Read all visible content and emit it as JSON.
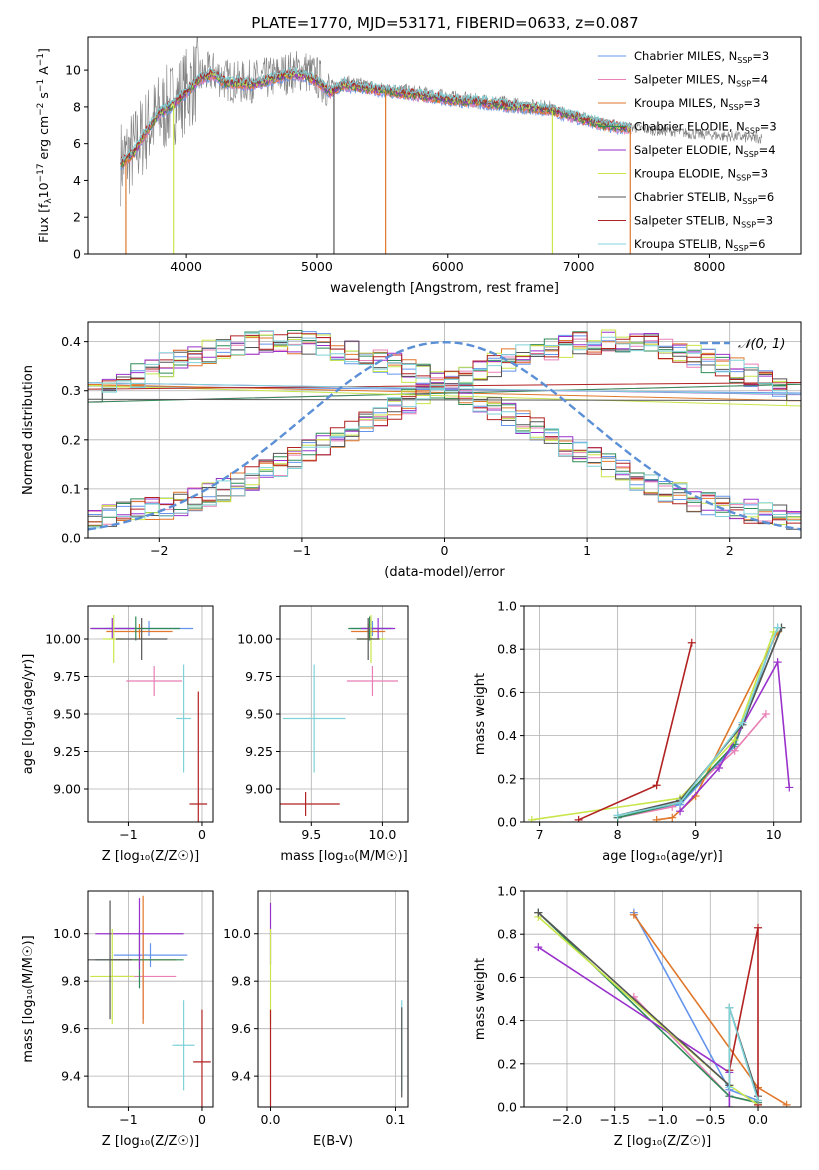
{
  "figure": {
    "title": "PLATE=1770, MJD=53171, FIBERID=0633, z=0.087"
  },
  "series_styles": [
    {
      "name": "Chabrier MILES",
      "nssp": "3",
      "color": "#6495ed"
    },
    {
      "name": "Salpeter MILES",
      "nssp": "4",
      "color": "#e87fb5"
    },
    {
      "name": "Kroupa MILES",
      "nssp": "3",
      "color": "#e0772a"
    },
    {
      "name": "Chabrier ELODIE",
      "nssp": "3",
      "color": "#2e8b57"
    },
    {
      "name": "Salpeter ELODIE",
      "nssp": "4",
      "color": "#9932cc"
    },
    {
      "name": "Kroupa ELODIE",
      "nssp": "3",
      "color": "#c8e64a"
    },
    {
      "name": "Chabrier STELIB",
      "nssp": "6",
      "color": "#555555"
    },
    {
      "name": "Salpeter STELIB",
      "nssp": "3",
      "color": "#b22222"
    },
    {
      "name": "Kroupa STELIB",
      "nssp": "6",
      "color": "#7fd3d8"
    }
  ],
  "chart_data": [
    {
      "id": "spectrum",
      "type": "line",
      "title": "PLATE=1770, MJD=53171, FIBERID=0633, z=0.087",
      "xlabel": "wavelength [Angstrom, rest frame]",
      "ylabel": "Flux [f",
      "xlim": [
        3250,
        8700
      ],
      "ylim": [
        0,
        11.8
      ],
      "xticks": [
        4000,
        5000,
        6000,
        7000,
        8000
      ],
      "yticks": [
        0,
        2,
        4,
        6,
        8,
        10
      ],
      "legend_position": "upper right",
      "data_color": "#808080",
      "data": {
        "x": [
          3500,
          3600,
          3700,
          3800,
          3900,
          4000,
          4100,
          4200,
          4300,
          4400,
          4500,
          4600,
          4700,
          4800,
          4900,
          5000,
          5100,
          5200,
          5300,
          5400,
          5500,
          5600,
          5700,
          5800,
          5900,
          6000,
          6100,
          6200,
          6300,
          6400,
          6500,
          6600,
          6700,
          6800,
          6900,
          7000,
          7100,
          7200,
          7300,
          7400,
          7500,
          7600,
          7700,
          7800,
          7900,
          8000,
          8100,
          8200,
          8300,
          8400
        ],
        "y": [
          5.0,
          5.6,
          6.8,
          7.6,
          8.2,
          8.9,
          9.6,
          9.9,
          9.5,
          9.3,
          9.4,
          9.5,
          9.7,
          9.9,
          10.0,
          9.6,
          9.0,
          9.3,
          9.2,
          9.1,
          8.9,
          8.9,
          8.8,
          8.7,
          8.6,
          8.5,
          8.4,
          8.3,
          8.3,
          8.2,
          8.1,
          8.0,
          8.0,
          7.9,
          7.7,
          7.5,
          7.3,
          7.1,
          7.0,
          6.9,
          6.8,
          6.7,
          6.7,
          6.6,
          6.5,
          6.5,
          6.4,
          6.4,
          6.3,
          6.3
        ]
      },
      "model": {
        "x": [
          3500,
          3600,
          3700,
          3800,
          3900,
          4000,
          4100,
          4200,
          4300,
          4400,
          4500,
          4600,
          4700,
          4800,
          4900,
          5000,
          5100,
          5200,
          5300,
          5400,
          5500,
          5600,
          5700,
          5800,
          5900,
          6000,
          6100,
          6200,
          6300,
          6400,
          6500,
          6600,
          6700,
          6800,
          6900,
          7000,
          7100,
          7200,
          7300,
          7400
        ],
        "y": [
          4.9,
          5.5,
          6.7,
          7.7,
          8.1,
          8.8,
          9.5,
          9.8,
          9.3,
          9.3,
          9.2,
          9.4,
          9.6,
          9.8,
          9.7,
          9.4,
          8.8,
          9.2,
          9.1,
          9.0,
          8.9,
          8.8,
          8.7,
          8.6,
          8.5,
          8.4,
          8.3,
          8.3,
          8.2,
          8.1,
          8.0,
          8.0,
          7.9,
          7.8,
          7.6,
          7.4,
          7.2,
          7.0,
          6.9,
          6.8
        ]
      },
      "dips": [
        {
          "x": 3540,
          "series": "Kroupa MILES"
        },
        {
          "x": 3905,
          "series": "Kroupa ELODIE"
        },
        {
          "x": 5130,
          "series": "Chabrier STELIB"
        },
        {
          "x": 5525,
          "series": "Kroupa MILES"
        },
        {
          "x": 6800,
          "series": "Kroupa ELODIE"
        },
        {
          "x": 7395,
          "series": "Kroupa MILES"
        }
      ]
    },
    {
      "id": "residuals",
      "type": "line",
      "xlabel": "(data-model)/error",
      "ylabel": "Normed distribution",
      "xlim": [
        -2.5,
        2.5
      ],
      "ylim": [
        0,
        0.44
      ],
      "xticks": [
        -2,
        -1,
        0,
        1,
        2
      ],
      "yticks": [
        0.0,
        0.1,
        0.2,
        0.3,
        0.4
      ],
      "legend": [
        {
          "label": "𝒩(0, 1)",
          "color": "#5b8fd6",
          "style": "dashed"
        }
      ],
      "legend_position": "upper right",
      "bin_width": 0.1,
      "bin_start": -2.5,
      "histogram_base": [
        0.04,
        0.045,
        0.05,
        0.055,
        0.058,
        0.062,
        0.07,
        0.078,
        0.088,
        0.098,
        0.11,
        0.122,
        0.135,
        0.148,
        0.162,
        0.176,
        0.19,
        0.205,
        0.22,
        0.235,
        0.25,
        0.264,
        0.278,
        0.292,
        0.305,
        0.318,
        0.33,
        0.342,
        0.353,
        0.362,
        0.371,
        0.379,
        0.386,
        0.392,
        0.396,
        0.399,
        0.4,
        0.399,
        0.396,
        0.392,
        0.386,
        0.379,
        0.371,
        0.362,
        0.353,
        0.342,
        0.33,
        0.318,
        0.305,
        0.292
      ]
    },
    {
      "id": "age-vs-Z",
      "type": "scatter",
      "xlabel": "Z [log₁₀(Z/Z☉)]",
      "ylabel": "age  [log₁₀(age/yr)]",
      "xlim": [
        -1.55,
        0.15
      ],
      "ylim": [
        8.78,
        10.22
      ],
      "xticks": [
        -1,
        0
      ],
      "yticks": [
        9.0,
        9.25,
        9.5,
        9.75,
        10.0
      ],
      "points": [
        {
          "s": 0,
          "x": -0.72,
          "y": 10.07,
          "xe": 0.6,
          "ye": 0.05
        },
        {
          "s": 1,
          "x": -0.65,
          "y": 9.72,
          "xe": 0.38,
          "ye": 0.1
        },
        {
          "s": 2,
          "x": -0.85,
          "y": 10.05,
          "xe": 0.45,
          "ye": 0.05
        },
        {
          "s": 3,
          "x": -0.9,
          "y": 10.07,
          "xe": 0.6,
          "ye": 0.08
        },
        {
          "s": 4,
          "x": -1.22,
          "y": 10.07,
          "xe": 0.3,
          "ye": 0.07
        },
        {
          "s": 5,
          "x": -1.2,
          "y": 10.0,
          "xe": 0.15,
          "ye": 0.16
        },
        {
          "s": 6,
          "x": -0.82,
          "y": 10.0,
          "xe": 0.35,
          "ye": 0.14
        },
        {
          "s": 7,
          "x": -0.05,
          "y": 8.9,
          "xe": 0.12,
          "ye": 0.75
        },
        {
          "s": 8,
          "x": -0.25,
          "y": 9.47,
          "xe": 0.1,
          "ye": 0.36
        }
      ]
    },
    {
      "id": "age-vs-mass",
      "type": "scatter",
      "xlabel": "mass [log₁₀(M/M☉)]",
      "ylabel": "",
      "xlim": [
        9.28,
        10.18
      ],
      "ylim": [
        8.78,
        10.22
      ],
      "xticks": [
        9.5,
        10.0
      ],
      "yticks": [
        9.0,
        9.25,
        9.5,
        9.75,
        10.0
      ],
      "points": [
        {
          "s": 0,
          "x": 9.93,
          "y": 10.07,
          "xe": 0.15,
          "ye": 0.05
        },
        {
          "s": 1,
          "x": 9.93,
          "y": 9.72,
          "xe": 0.18,
          "ye": 0.1
        },
        {
          "s": 2,
          "x": 9.9,
          "y": 10.05,
          "xe": 0.12,
          "ye": 0.05
        },
        {
          "s": 3,
          "x": 9.91,
          "y": 10.07,
          "xe": 0.15,
          "ye": 0.08
        },
        {
          "s": 4,
          "x": 9.97,
          "y": 10.07,
          "xe": 0.12,
          "ye": 0.07
        },
        {
          "s": 5,
          "x": 9.92,
          "y": 10.0,
          "xe": 0.1,
          "ye": 0.16
        },
        {
          "s": 6,
          "x": 9.9,
          "y": 10.0,
          "xe": 0.08,
          "ye": 0.14
        },
        {
          "s": 7,
          "x": 9.46,
          "y": 8.9,
          "xe": 0.24,
          "ye": 0.08
        },
        {
          "s": 8,
          "x": 9.52,
          "y": 9.47,
          "xe": 0.22,
          "ye": 0.36
        }
      ]
    },
    {
      "id": "mass-weight-vs-age",
      "type": "line",
      "xlabel": "age  [log₁₀(age/yr)]",
      "ylabel": "mass weight",
      "xlim": [
        6.8,
        10.35
      ],
      "ylim": [
        0,
        1.0
      ],
      "xticks": [
        7,
        8,
        9,
        10
      ],
      "yticks": [
        0.0,
        0.2,
        0.4,
        0.6,
        0.8,
        1.0
      ],
      "lines": [
        {
          "s": 0,
          "x": [
            8.0,
            8.8,
            9.5,
            10.05
          ],
          "y": [
            0.02,
            0.08,
            0.35,
            0.9
          ]
        },
        {
          "s": 1,
          "x": [
            8.0,
            8.7,
            9.5,
            9.9
          ],
          "y": [
            0.02,
            0.07,
            0.33,
            0.5
          ]
        },
        {
          "s": 2,
          "x": [
            8.5,
            8.7,
            9.0,
            10.05
          ],
          "y": [
            0.01,
            0.02,
            0.12,
            0.88
          ]
        },
        {
          "s": 3,
          "x": [
            8.0,
            8.8,
            9.5,
            10.1
          ],
          "y": [
            0.02,
            0.09,
            0.36,
            0.9
          ]
        },
        {
          "s": 4,
          "x": [
            8.8,
            9.3,
            10.05,
            10.2
          ],
          "y": [
            0.05,
            0.25,
            0.74,
            0.16
          ]
        },
        {
          "s": 5,
          "x": [
            6.9,
            8.8,
            9.5,
            10.0
          ],
          "y": [
            0.01,
            0.11,
            0.38,
            0.88
          ]
        },
        {
          "s": 6,
          "x": [
            8.0,
            8.8,
            9.6,
            10.1
          ],
          "y": [
            0.03,
            0.1,
            0.45,
            0.9
          ]
        },
        {
          "s": 7,
          "x": [
            7.5,
            8.5,
            8.95
          ],
          "y": [
            0.01,
            0.17,
            0.83
          ]
        },
        {
          "s": 8,
          "x": [
            8.0,
            8.8,
            9.6,
            10.05
          ],
          "y": [
            0.03,
            0.09,
            0.46,
            0.9
          ]
        }
      ]
    },
    {
      "id": "mass-vs-Z",
      "type": "scatter",
      "xlabel": "Z [log₁₀(Z/Z☉)]",
      "ylabel": "mass [log₁₀(M/M☉)]",
      "xlim": [
        -1.55,
        0.15
      ],
      "ylim": [
        9.27,
        10.18
      ],
      "xticks": [
        -1,
        0
      ],
      "yticks": [
        9.4,
        9.6,
        9.8,
        10.0
      ],
      "points": [
        {
          "s": 0,
          "x": -0.7,
          "y": 9.91,
          "xe": 0.5,
          "ye": 0.05
        },
        {
          "s": 1,
          "x": -0.8,
          "y": 9.82,
          "xe": 0.45,
          "ye": 0.18
        },
        {
          "s": 2,
          "x": -0.8,
          "y": 9.89,
          "xe": 0.45,
          "ye": 0.27
        },
        {
          "s": 3,
          "x": -0.85,
          "y": 9.89,
          "xe": 0.6,
          "ye": 0.12
        },
        {
          "s": 4,
          "x": -0.85,
          "y": 10.0,
          "xe": 0.6,
          "ye": 0.15
        },
        {
          "s": 5,
          "x": -1.22,
          "y": 9.82,
          "xe": 0.3,
          "ye": 0.2
        },
        {
          "s": 6,
          "x": -1.25,
          "y": 9.89,
          "xe": 0.3,
          "ye": 0.25
        },
        {
          "s": 7,
          "x": 0.0,
          "y": 9.46,
          "xe": 0.12,
          "ye": 0.22
        },
        {
          "s": 8,
          "x": -0.25,
          "y": 9.53,
          "xe": 0.15,
          "ye": 0.19
        }
      ]
    },
    {
      "id": "mass-vs-EBV",
      "type": "scatter",
      "xlabel": "E(B-V)",
      "ylabel": "",
      "xlim": [
        -0.01,
        0.11
      ],
      "ylim": [
        9.27,
        10.18
      ],
      "xticks": [
        0.0,
        0.1
      ],
      "xticklabels": [
        "0.0",
        "0.1"
      ],
      "yticks": [
        9.4,
        9.6,
        9.8,
        10.0
      ],
      "points": [
        {
          "s": 4,
          "x": 0.0,
          "y": 10.0,
          "xe": 0.0,
          "ye": 0.13
        },
        {
          "s": 5,
          "x": 0.0,
          "y": 9.82,
          "xe": 0.0,
          "ye": 0.2
        },
        {
          "s": 7,
          "x": 0.0,
          "y": 9.46,
          "xe": 0.0,
          "ye": 0.22
        },
        {
          "s": 8,
          "x": 0.105,
          "y": 9.53,
          "xe": 0.0,
          "ye": 0.19
        },
        {
          "s": 6,
          "x": 0.105,
          "y": 9.5,
          "xe": 0.0,
          "ye": 0.19
        }
      ]
    },
    {
      "id": "mass-weight-vs-Z",
      "type": "line",
      "xlabel": "Z [log₁₀(Z/Z☉)]",
      "ylabel": "mass weight",
      "xlim": [
        -2.45,
        0.45
      ],
      "ylim": [
        0,
        1.0
      ],
      "xticks": [
        -2.0,
        -1.5,
        -1.0,
        -0.5,
        0.0
      ],
      "yticks": [
        0.0,
        0.2,
        0.4,
        0.6,
        0.8,
        1.0
      ],
      "lines": [
        {
          "s": 0,
          "x": [
            -1.3,
            -0.3,
            0.0
          ],
          "y": [
            0.9,
            0.08,
            0.03
          ]
        },
        {
          "s": 1,
          "x": [
            -1.3,
            -0.3,
            0.0
          ],
          "y": [
            0.51,
            0.05,
            0.02
          ]
        },
        {
          "s": 2,
          "x": [
            -1.3,
            0.0,
            0.3
          ],
          "y": [
            0.89,
            0.09,
            0.01
          ]
        },
        {
          "s": 3,
          "x": [
            -2.3,
            -0.3,
            0.0
          ],
          "y": [
            0.9,
            0.05,
            0.02
          ]
        },
        {
          "s": 4,
          "x": [
            -2.3,
            -0.3,
            -0.3
          ],
          "y": [
            0.74,
            0.16,
            0.0
          ]
        },
        {
          "s": 5,
          "x": [
            -2.3,
            -0.3,
            0.0
          ],
          "y": [
            0.88,
            0.1,
            0.01
          ]
        },
        {
          "s": 6,
          "x": [
            -2.3,
            -0.3,
            -0.3,
            0.0
          ],
          "y": [
            0.9,
            0.1,
            0.46,
            0.05
          ]
        },
        {
          "s": 7,
          "x": [
            -0.3,
            0.0,
            0.0
          ],
          "y": [
            0.17,
            0.83,
            0.01
          ]
        },
        {
          "s": 8,
          "x": [
            -0.3,
            -0.3,
            0.0
          ],
          "y": [
            0.09,
            0.46,
            0.03
          ]
        }
      ]
    }
  ]
}
